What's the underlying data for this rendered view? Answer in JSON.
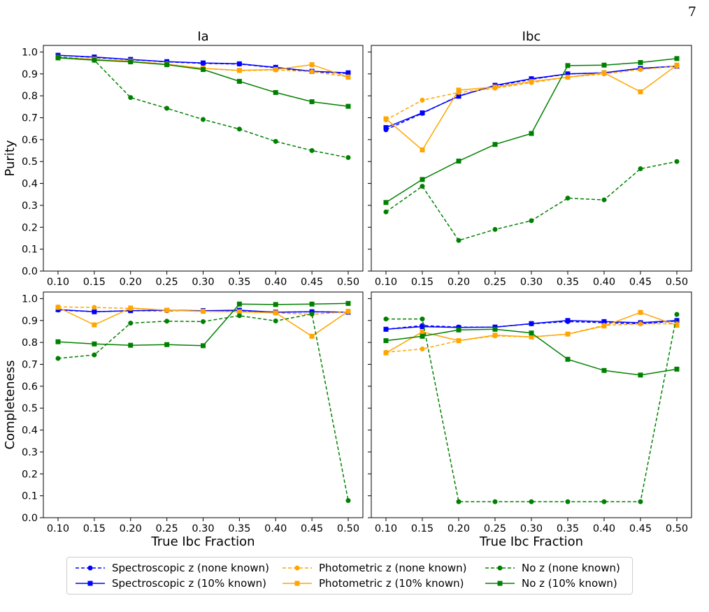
{
  "page_number": "7",
  "colors": {
    "spectroscopic": "#0000ff",
    "photometric": "#ffa500",
    "noz": "#008000"
  },
  "chart_data": [
    {
      "type": "line",
      "panel": "purity-ia",
      "title": "Ia",
      "xlabel": "",
      "ylabel": "Purity",
      "x": [
        0.1,
        0.15,
        0.2,
        0.25,
        0.3,
        0.35,
        0.4,
        0.45,
        0.5
      ],
      "xticks": [
        "0.10",
        "0.15",
        "0.20",
        "0.25",
        "0.30",
        "0.35",
        "0.40",
        "0.45",
        "0.50"
      ],
      "yticks": [
        "0.0",
        "0.1",
        "0.2",
        "0.3",
        "0.4",
        "0.5",
        "0.6",
        "0.7",
        "0.8",
        "0.9",
        "1.0"
      ],
      "ylim": [
        0.0,
        1.03
      ],
      "series": [
        {
          "name": "Spectroscopic z (none known)",
          "color": "#0000ff",
          "dash": true,
          "marker": "circle",
          "values": [
            0.985,
            0.975,
            0.965,
            0.955,
            0.948,
            0.945,
            0.928,
            0.91,
            0.902
          ]
        },
        {
          "name": "Spectroscopic z (10% known)",
          "color": "#0000ff",
          "dash": false,
          "marker": "square",
          "values": [
            0.985,
            0.977,
            0.966,
            0.956,
            0.95,
            0.946,
            0.93,
            0.912,
            0.905
          ]
        },
        {
          "name": "Photometric z (none known)",
          "color": "#ffa500",
          "dash": true,
          "marker": "circle",
          "values": [
            0.975,
            0.965,
            0.957,
            0.945,
            0.925,
            0.915,
            0.918,
            0.91,
            0.887
          ]
        },
        {
          "name": "Photometric z (10% known)",
          "color": "#ffa500",
          "dash": false,
          "marker": "square",
          "values": [
            0.975,
            0.967,
            0.958,
            0.944,
            0.925,
            0.916,
            0.92,
            0.942,
            0.885
          ]
        },
        {
          "name": "No z (none known)",
          "color": "#008000",
          "dash": true,
          "marker": "circle",
          "values": [
            0.978,
            0.962,
            0.792,
            0.743,
            0.692,
            0.648,
            0.592,
            0.55,
            0.518
          ]
        },
        {
          "name": "No z (10% known)",
          "color": "#008000",
          "dash": false,
          "marker": "square",
          "values": [
            0.973,
            0.963,
            0.955,
            0.942,
            0.92,
            0.866,
            0.815,
            0.773,
            0.752
          ]
        }
      ]
    },
    {
      "type": "line",
      "panel": "purity-ibc",
      "title": "Ibc",
      "xlabel": "",
      "ylabel": "",
      "x": [
        0.1,
        0.15,
        0.2,
        0.25,
        0.3,
        0.35,
        0.4,
        0.45,
        0.5
      ],
      "xticks": [
        "0.10",
        "0.15",
        "0.20",
        "0.25",
        "0.30",
        "0.35",
        "0.40",
        "0.45",
        "0.50"
      ],
      "yticks": [],
      "ylim": [
        0.0,
        1.03
      ],
      "series": [
        {
          "name": "Spectroscopic z (none known)",
          "color": "#0000ff",
          "dash": true,
          "marker": "circle",
          "values": [
            0.645,
            0.72,
            0.8,
            0.845,
            0.875,
            0.9,
            0.905,
            0.925,
            0.935
          ]
        },
        {
          "name": "Spectroscopic z (10% known)",
          "color": "#0000ff",
          "dash": false,
          "marker": "square",
          "values": [
            0.655,
            0.722,
            0.798,
            0.848,
            0.878,
            0.9,
            0.905,
            0.925,
            0.935
          ]
        },
        {
          "name": "Photometric z (none known)",
          "color": "#ffa500",
          "dash": true,
          "marker": "circle",
          "values": [
            0.69,
            0.78,
            0.815,
            0.835,
            0.86,
            0.885,
            0.9,
            0.92,
            0.935
          ]
        },
        {
          "name": "Photometric z (10% known)",
          "color": "#ffa500",
          "dash": false,
          "marker": "square",
          "values": [
            0.695,
            0.553,
            0.826,
            0.84,
            0.865,
            0.885,
            0.905,
            0.818,
            0.94
          ]
        },
        {
          "name": "No z (none known)",
          "color": "#008000",
          "dash": true,
          "marker": "circle",
          "values": [
            0.27,
            0.387,
            0.14,
            0.19,
            0.23,
            0.333,
            0.325,
            0.467,
            0.5
          ]
        },
        {
          "name": "No z (10% known)",
          "color": "#008000",
          "dash": false,
          "marker": "square",
          "values": [
            0.313,
            0.418,
            0.502,
            0.578,
            0.628,
            0.938,
            0.94,
            0.952,
            0.97
          ]
        }
      ]
    },
    {
      "type": "line",
      "panel": "completeness-ia",
      "title": "",
      "xlabel": "True Ibc Fraction",
      "ylabel": "Completeness",
      "x": [
        0.1,
        0.15,
        0.2,
        0.25,
        0.3,
        0.35,
        0.4,
        0.45,
        0.5
      ],
      "xticks": [
        "0.10",
        "0.15",
        "0.20",
        "0.25",
        "0.30",
        "0.35",
        "0.40",
        "0.45",
        "0.50"
      ],
      "yticks": [
        "0.0",
        "0.1",
        "0.2",
        "0.3",
        "0.4",
        "0.5",
        "0.6",
        "0.7",
        "0.8",
        "0.9",
        "1.0"
      ],
      "ylim": [
        0.0,
        1.03
      ],
      "series": [
        {
          "name": "Spectroscopic z (none known)",
          "color": "#0000ff",
          "dash": true,
          "marker": "circle",
          "values": [
            0.948,
            0.94,
            0.945,
            0.945,
            0.945,
            0.945,
            0.938,
            0.94,
            0.938
          ]
        },
        {
          "name": "Spectroscopic z (10% known)",
          "color": "#0000ff",
          "dash": false,
          "marker": "square",
          "values": [
            0.95,
            0.94,
            0.945,
            0.947,
            0.945,
            0.947,
            0.938,
            0.94,
            0.938
          ]
        },
        {
          "name": "Photometric z (none known)",
          "color": "#ffa500",
          "dash": true,
          "marker": "circle",
          "values": [
            0.962,
            0.96,
            0.955,
            0.947,
            0.942,
            0.94,
            0.935,
            0.928,
            0.94
          ]
        },
        {
          "name": "Photometric z (10% known)",
          "color": "#ffa500",
          "dash": false,
          "marker": "square",
          "values": [
            0.96,
            0.88,
            0.957,
            0.947,
            0.942,
            0.94,
            0.935,
            0.828,
            0.942
          ]
        },
        {
          "name": "No z (none known)",
          "color": "#008000",
          "dash": true,
          "marker": "circle",
          "values": [
            0.727,
            0.743,
            0.888,
            0.897,
            0.895,
            0.922,
            0.898,
            0.93,
            0.078
          ]
        },
        {
          "name": "No z (10% known)",
          "color": "#008000",
          "dash": false,
          "marker": "square",
          "values": [
            0.803,
            0.793,
            0.787,
            0.79,
            0.785,
            0.975,
            0.973,
            0.975,
            0.978
          ]
        }
      ]
    },
    {
      "type": "line",
      "panel": "completeness-ibc",
      "title": "",
      "xlabel": "True Ibc Fraction",
      "ylabel": "",
      "x": [
        0.1,
        0.15,
        0.2,
        0.25,
        0.3,
        0.35,
        0.4,
        0.45,
        0.5
      ],
      "xticks": [
        "0.10",
        "0.15",
        "0.20",
        "0.25",
        "0.30",
        "0.35",
        "0.40",
        "0.45",
        "0.50"
      ],
      "yticks": [],
      "ylim": [
        0.0,
        1.03
      ],
      "series": [
        {
          "name": "Spectroscopic z (none known)",
          "color": "#0000ff",
          "dash": true,
          "marker": "circle",
          "values": [
            0.86,
            0.877,
            0.87,
            0.87,
            0.885,
            0.895,
            0.89,
            0.885,
            0.898
          ]
        },
        {
          "name": "Spectroscopic z (10% known)",
          "color": "#0000ff",
          "dash": false,
          "marker": "square",
          "values": [
            0.86,
            0.872,
            0.868,
            0.87,
            0.886,
            0.9,
            0.895,
            0.89,
            0.9
          ]
        },
        {
          "name": "Photometric z (none known)",
          "color": "#ffa500",
          "dash": true,
          "marker": "circle",
          "values": [
            0.755,
            0.77,
            0.808,
            0.83,
            0.825,
            0.838,
            0.878,
            0.885,
            0.885
          ]
        },
        {
          "name": "Photometric z (10% known)",
          "color": "#ffa500",
          "dash": false,
          "marker": "square",
          "values": [
            0.752,
            0.848,
            0.808,
            0.833,
            0.825,
            0.838,
            0.875,
            0.937,
            0.878
          ]
        },
        {
          "name": "No z (none known)",
          "color": "#008000",
          "dash": true,
          "marker": "circle",
          "values": [
            0.907,
            0.907,
            0.073,
            0.073,
            0.073,
            0.073,
            0.073,
            0.073,
            0.928
          ]
        },
        {
          "name": "No z (10% known)",
          "color": "#008000",
          "dash": false,
          "marker": "square",
          "values": [
            0.808,
            0.828,
            0.857,
            0.86,
            0.843,
            0.723,
            0.672,
            0.651,
            0.678
          ]
        }
      ]
    }
  ],
  "legend": {
    "items": [
      {
        "label": "Spectroscopic z (none known)",
        "color": "#0000ff",
        "dash": true,
        "marker": "circle"
      },
      {
        "label": "Spectroscopic z (10% known)",
        "color": "#0000ff",
        "dash": false,
        "marker": "square"
      },
      {
        "label": "Photometric z (none known)",
        "color": "#ffa500",
        "dash": true,
        "marker": "circle"
      },
      {
        "label": "Photometric z (10% known)",
        "color": "#ffa500",
        "dash": false,
        "marker": "square"
      },
      {
        "label": "No z (none known)",
        "color": "#008000",
        "dash": true,
        "marker": "circle"
      },
      {
        "label": "No z (10% known)",
        "color": "#008000",
        "dash": false,
        "marker": "square"
      }
    ]
  }
}
